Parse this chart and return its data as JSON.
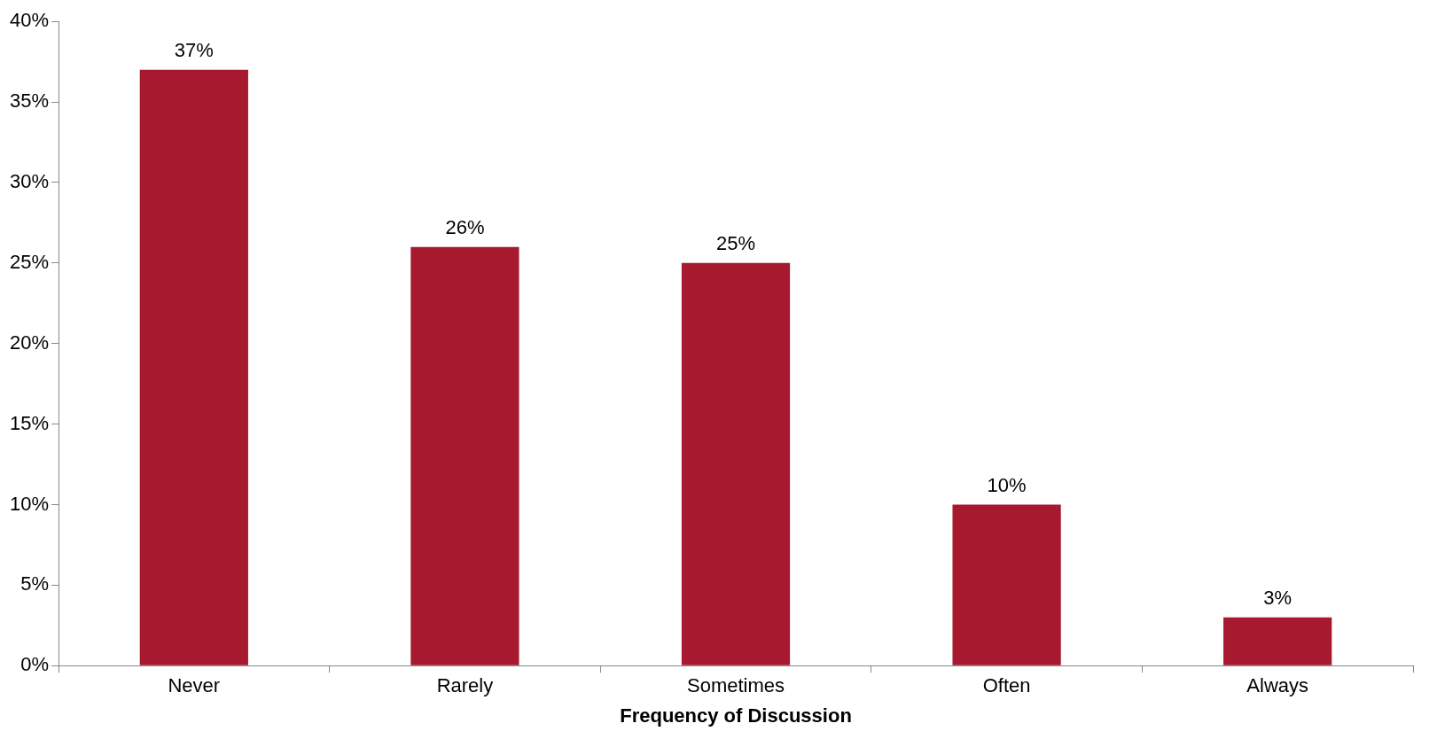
{
  "chart_data": {
    "type": "bar",
    "xlabel": "Frequency of Discussion",
    "categories": [
      "Never",
      "Rarely",
      "Sometimes",
      "Often",
      "Always"
    ],
    "values": [
      37,
      26,
      25,
      10,
      3
    ],
    "color": "#a6192e",
    "value_labels": [
      "37%",
      "26%",
      "25%",
      "10%",
      "3%"
    ],
    "ylim": [
      0,
      40
    ],
    "yticks": [
      {
        "value": 0,
        "label": "0%"
      },
      {
        "value": 5,
        "label": "5%"
      },
      {
        "value": 10,
        "label": "10%"
      },
      {
        "value": 15,
        "label": "15%"
      },
      {
        "value": 20,
        "label": "20%"
      },
      {
        "value": 25,
        "label": "25%"
      },
      {
        "value": 30,
        "label": "30%"
      },
      {
        "value": 35,
        "label": "35%"
      },
      {
        "value": 40,
        "label": "40%"
      }
    ],
    "grid": false,
    "legend": false
  }
}
